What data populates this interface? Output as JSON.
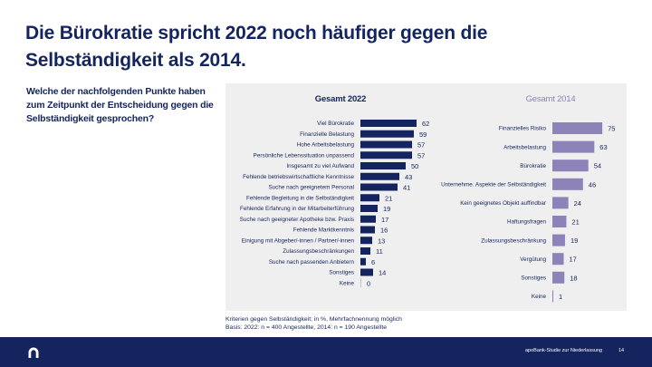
{
  "title": "Die Bürokratie spricht 2022 noch häufiger gegen die Selbständigkeit als 2014.",
  "question": "Welche der nachfolgenden Punkte haben zum Zeitpunkt der Entscheidung gegen die Selbständigkeit gesprochen?",
  "note": {
    "line1": "Kriterien gegen Selbständigkeit; in %, Mehrfachnennung möglich",
    "line2": "Basis: 2022: n = 400 Angestellte, 2014: n = 190 Angestellte"
  },
  "footer": {
    "logo": "apobank-logo-icon",
    "text": "apoBank-Studie zur Niederlassung",
    "page": "14"
  },
  "colors": {
    "brand": "#14245e",
    "series2022": "#14245e",
    "series2014": "#8d83b8",
    "panel": "#efefef"
  },
  "chart_data": [
    {
      "type": "bar",
      "orientation": "horizontal",
      "title": "Gesamt 2022",
      "unit": "%",
      "categories": [
        "Viel Bürokratie",
        "Finanzielle Belastung",
        "Hohe Arbeitsbelastung",
        "Persönliche Lebenssituation unpassend",
        "Insgesamt zu viel Aufwand",
        "Fehlende betriebswirtschaftliche Kenntnisse",
        "Suche nach geeignetem Personal",
        "Fehlende Begleitung in die Selbständigkeit",
        "Fehlende Erfahrung in der Mitarbeiterführung",
        "Suche nach geeigneter Apotheke bzw. Praxis",
        "Fehlende Marktkenntnis",
        "Einigung mit Abgeber/-innen / Partner/-innen",
        "Zulassungsbeschränkungen",
        "Suche nach passenden Anbietern",
        "Sonstiges",
        "Keine"
      ],
      "values": [
        62,
        59,
        57,
        57,
        50,
        43,
        41,
        21,
        19,
        17,
        16,
        13,
        11,
        6,
        14,
        0
      ],
      "xlim": [
        0,
        100
      ],
      "grid": false,
      "legend": "none"
    },
    {
      "type": "bar",
      "orientation": "horizontal",
      "title": "Gesamt 2014",
      "unit": "%",
      "categories": [
        "Finanzielles Risiko",
        "Arbeitsbelastung",
        "Bürokratie",
        "Unternehme. Aspekte der Selbständigkeit",
        "Kein geeignetes Objekt auffindbar",
        "Haftungsfragen",
        "Zulassungsbeschränkung",
        "Vergütung",
        "Sonstiges",
        "Keine"
      ],
      "values": [
        75,
        63,
        54,
        46,
        24,
        21,
        19,
        17,
        18,
        1
      ],
      "xlim": [
        0,
        100
      ],
      "grid": false,
      "legend": "none"
    }
  ]
}
